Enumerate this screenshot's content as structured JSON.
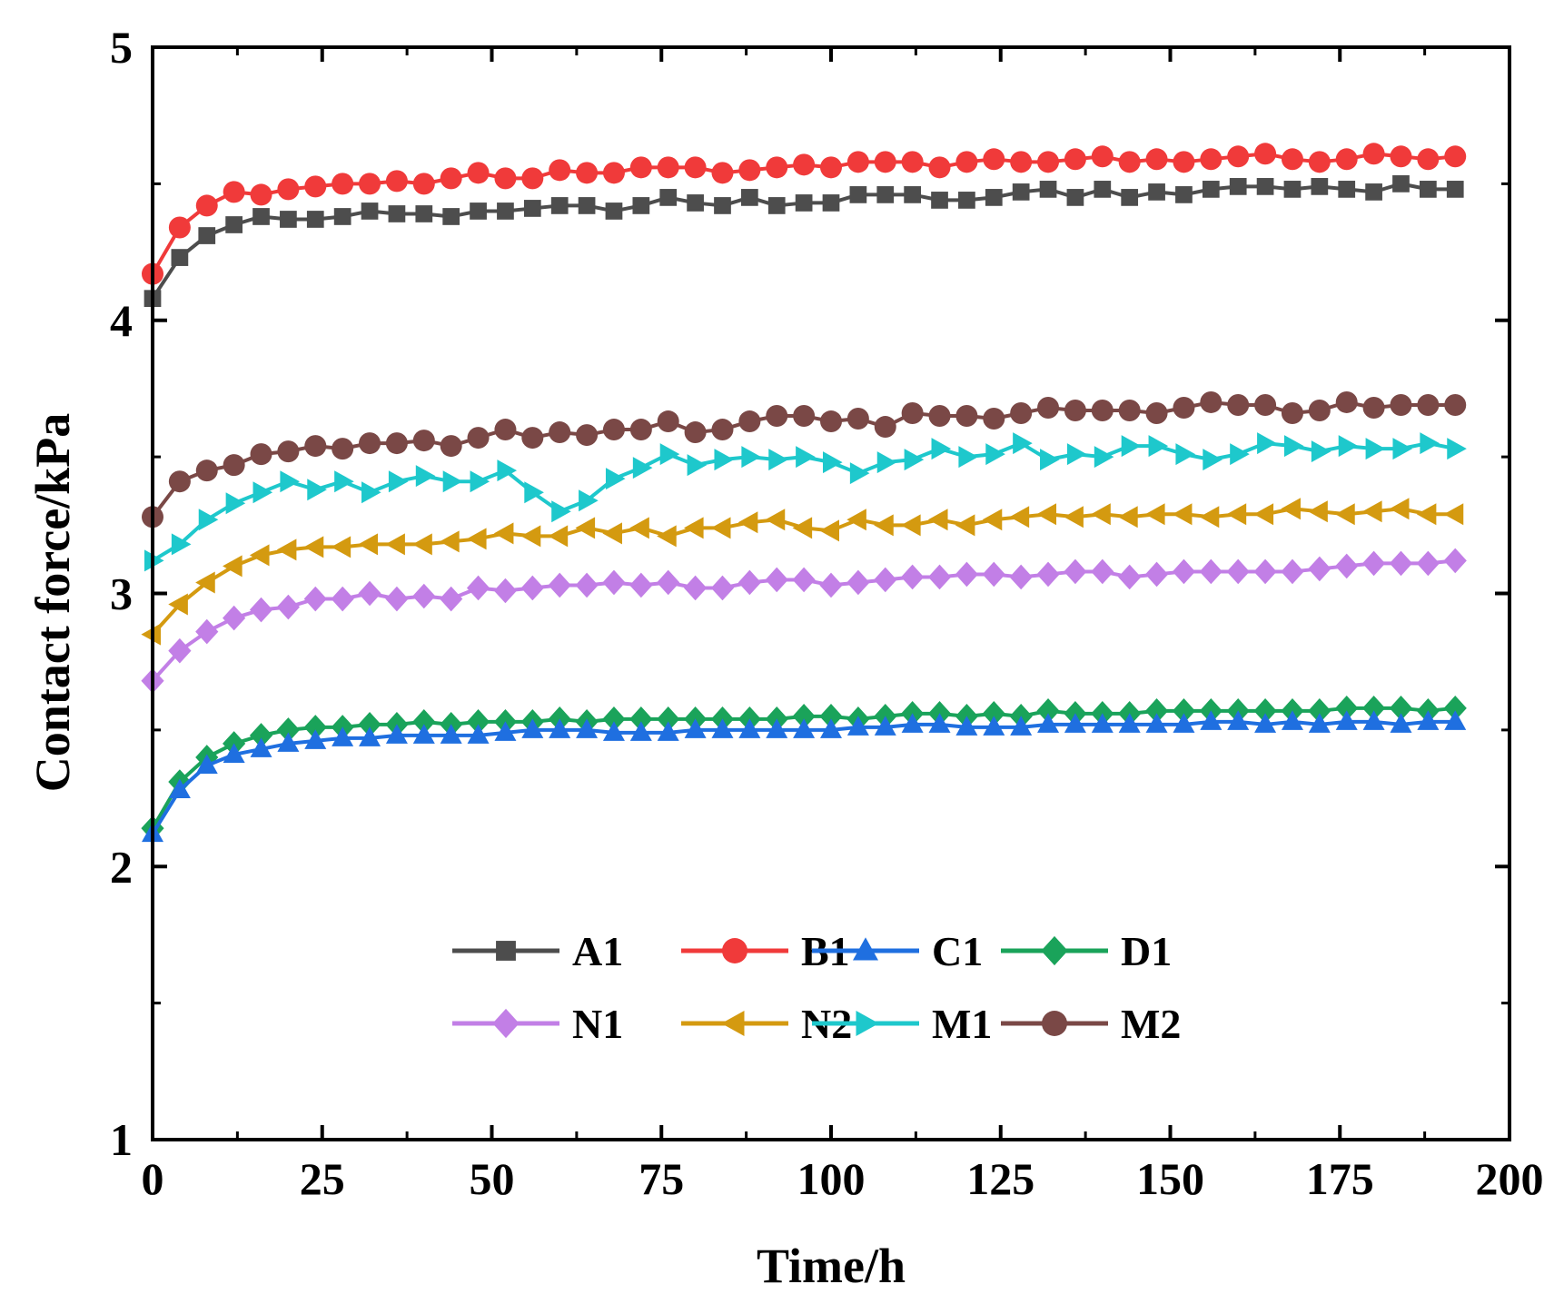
{
  "chart_data": {
    "type": "line",
    "title": "",
    "xlabel": "Time/h",
    "ylabel": "Contact force/kPa",
    "xlim": [
      0,
      200
    ],
    "ylim": [
      1,
      5
    ],
    "xticks": [
      0,
      25,
      50,
      75,
      100,
      125,
      150,
      175,
      200
    ],
    "xtick_labels": [
      "0",
      "25",
      "50",
      "75",
      "100",
      "125",
      "150",
      "175",
      "200"
    ],
    "yticks": [
      1,
      2,
      3,
      4,
      5
    ],
    "ytick_labels": [
      "1",
      "2",
      "3",
      "4",
      "5"
    ],
    "grid": false,
    "legend_position": "bottom-center",
    "x": [
      0,
      4,
      8,
      12,
      16,
      20,
      24,
      28,
      32,
      36,
      40,
      44,
      48,
      52,
      56,
      60,
      64,
      68,
      72,
      76,
      80,
      84,
      88,
      92,
      96,
      100,
      104,
      108,
      112,
      116,
      120,
      124,
      128,
      132,
      136,
      140,
      144,
      148,
      152,
      156,
      160,
      164,
      168,
      172,
      176,
      180,
      184,
      188,
      192
    ],
    "series": [
      {
        "name": "A1",
        "color": "#4d4d4d",
        "marker": "square",
        "values": [
          4.08,
          4.23,
          4.31,
          4.35,
          4.38,
          4.37,
          4.37,
          4.38,
          4.4,
          4.39,
          4.39,
          4.38,
          4.4,
          4.4,
          4.41,
          4.42,
          4.42,
          4.4,
          4.42,
          4.45,
          4.43,
          4.42,
          4.45,
          4.42,
          4.43,
          4.43,
          4.46,
          4.46,
          4.46,
          4.44,
          4.44,
          4.45,
          4.47,
          4.48,
          4.45,
          4.48,
          4.45,
          4.47,
          4.46,
          4.48,
          4.49,
          4.49,
          4.48,
          4.49,
          4.48,
          4.47,
          4.5,
          4.48,
          4.48
        ]
      },
      {
        "name": "B1",
        "color": "#f03a3a",
        "marker": "circle",
        "values": [
          4.17,
          4.34,
          4.42,
          4.47,
          4.46,
          4.48,
          4.49,
          4.5,
          4.5,
          4.51,
          4.5,
          4.52,
          4.54,
          4.52,
          4.52,
          4.55,
          4.54,
          4.54,
          4.56,
          4.56,
          4.56,
          4.54,
          4.55,
          4.56,
          4.57,
          4.56,
          4.58,
          4.58,
          4.58,
          4.56,
          4.58,
          4.59,
          4.58,
          4.58,
          4.59,
          4.6,
          4.58,
          4.59,
          4.58,
          4.59,
          4.6,
          4.61,
          4.59,
          4.58,
          4.59,
          4.61,
          4.6,
          4.59,
          4.6
        ]
      },
      {
        "name": "C1",
        "color": "#1f6fe0",
        "marker": "triangle-up",
        "values": [
          2.12,
          2.28,
          2.37,
          2.41,
          2.43,
          2.45,
          2.46,
          2.47,
          2.47,
          2.48,
          2.48,
          2.48,
          2.48,
          2.49,
          2.5,
          2.5,
          2.5,
          2.49,
          2.49,
          2.49,
          2.5,
          2.5,
          2.5,
          2.5,
          2.5,
          2.5,
          2.51,
          2.51,
          2.52,
          2.52,
          2.51,
          2.51,
          2.51,
          2.52,
          2.52,
          2.52,
          2.52,
          2.52,
          2.52,
          2.53,
          2.53,
          2.52,
          2.53,
          2.52,
          2.53,
          2.53,
          2.52,
          2.53,
          2.53
        ]
      },
      {
        "name": "D1",
        "color": "#1aa35a",
        "marker": "diamond",
        "values": [
          2.14,
          2.31,
          2.4,
          2.45,
          2.48,
          2.5,
          2.51,
          2.51,
          2.52,
          2.52,
          2.53,
          2.52,
          2.53,
          2.53,
          2.53,
          2.54,
          2.53,
          2.54,
          2.54,
          2.54,
          2.54,
          2.54,
          2.54,
          2.54,
          2.55,
          2.55,
          2.54,
          2.55,
          2.56,
          2.56,
          2.55,
          2.56,
          2.55,
          2.57,
          2.56,
          2.56,
          2.56,
          2.57,
          2.57,
          2.57,
          2.57,
          2.57,
          2.57,
          2.57,
          2.58,
          2.58,
          2.58,
          2.57,
          2.58
        ]
      },
      {
        "name": "N1",
        "color": "#c27fe6",
        "marker": "diamond",
        "values": [
          2.68,
          2.79,
          2.86,
          2.91,
          2.94,
          2.95,
          2.98,
          2.98,
          3.0,
          2.98,
          2.99,
          2.98,
          3.02,
          3.01,
          3.02,
          3.03,
          3.03,
          3.04,
          3.03,
          3.04,
          3.02,
          3.02,
          3.04,
          3.05,
          3.05,
          3.03,
          3.04,
          3.05,
          3.06,
          3.06,
          3.07,
          3.07,
          3.06,
          3.07,
          3.08,
          3.08,
          3.06,
          3.07,
          3.08,
          3.08,
          3.08,
          3.08,
          3.08,
          3.09,
          3.1,
          3.11,
          3.11,
          3.11,
          3.12
        ]
      },
      {
        "name": "N2",
        "color": "#d49a10",
        "marker": "triangle-left",
        "values": [
          2.85,
          2.96,
          3.04,
          3.1,
          3.14,
          3.16,
          3.17,
          3.17,
          3.18,
          3.18,
          3.18,
          3.19,
          3.2,
          3.22,
          3.21,
          3.21,
          3.24,
          3.22,
          3.24,
          3.21,
          3.24,
          3.24,
          3.26,
          3.27,
          3.24,
          3.23,
          3.27,
          3.25,
          3.25,
          3.27,
          3.25,
          3.27,
          3.28,
          3.29,
          3.28,
          3.29,
          3.28,
          3.29,
          3.29,
          3.28,
          3.29,
          3.29,
          3.31,
          3.3,
          3.29,
          3.3,
          3.31,
          3.29,
          3.29
        ]
      },
      {
        "name": "M1",
        "color": "#1ec8cc",
        "marker": "triangle-right",
        "values": [
          3.12,
          3.18,
          3.27,
          3.33,
          3.37,
          3.41,
          3.38,
          3.41,
          3.37,
          3.41,
          3.43,
          3.41,
          3.41,
          3.45,
          3.37,
          3.3,
          3.34,
          3.42,
          3.46,
          3.51,
          3.47,
          3.49,
          3.5,
          3.49,
          3.5,
          3.48,
          3.44,
          3.48,
          3.49,
          3.53,
          3.5,
          3.51,
          3.55,
          3.49,
          3.51,
          3.5,
          3.54,
          3.54,
          3.51,
          3.49,
          3.51,
          3.55,
          3.54,
          3.52,
          3.54,
          3.53,
          3.53,
          3.55,
          3.53
        ]
      },
      {
        "name": "M2",
        "color": "#7a4846",
        "marker": "circle",
        "values": [
          3.28,
          3.41,
          3.45,
          3.47,
          3.51,
          3.52,
          3.54,
          3.53,
          3.55,
          3.55,
          3.56,
          3.54,
          3.57,
          3.6,
          3.57,
          3.59,
          3.58,
          3.6,
          3.6,
          3.63,
          3.59,
          3.6,
          3.63,
          3.65,
          3.65,
          3.63,
          3.64,
          3.61,
          3.66,
          3.65,
          3.65,
          3.64,
          3.66,
          3.68,
          3.67,
          3.67,
          3.67,
          3.66,
          3.68,
          3.7,
          3.69,
          3.69,
          3.66,
          3.67,
          3.7,
          3.68,
          3.69,
          3.69,
          3.69
        ]
      }
    ]
  }
}
